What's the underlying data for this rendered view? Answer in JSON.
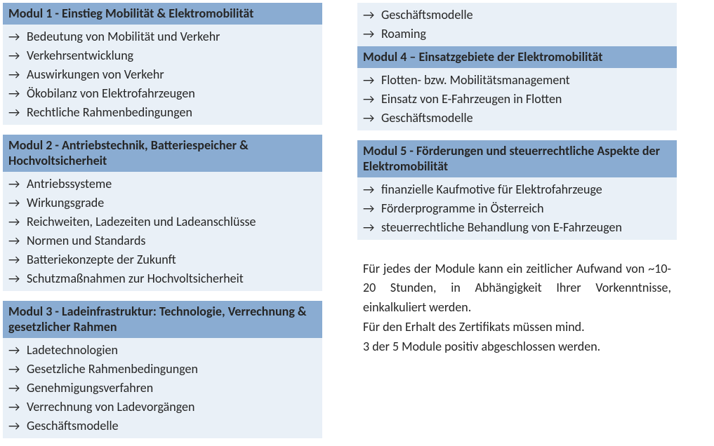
{
  "colors": {
    "header_bg": "#8aacd2",
    "body_bg": "#e9f0f7",
    "text": "#262626",
    "arrow": "#262626",
    "page_bg": "#ffffff"
  },
  "arrow_glyph": "→",
  "modules": {
    "m1": {
      "title": "Modul 1 - Einstieg Mobilität & Elektromobilität",
      "items": [
        "Bedeutung von Mobilität und Verkehr",
        "Verkehrsentwicklung",
        "Auswirkungen von Verkehr",
        "Ökobilanz von Elektrofahrzeugen",
        "Rechtliche Rahmenbedingungen"
      ]
    },
    "m2": {
      "title": "Modul 2 - Antriebstechnik, Batteriespeicher & Hochvoltsicherheit",
      "items": [
        "Antriebssysteme",
        "Wirkungsgrade",
        "Reichweiten, Ladezeiten und Ladeanschlüsse",
        "Normen und Standards",
        "Batteriekonzepte der Zukunft",
        "Schutzmaßnahmen zur Hochvoltsicherheit"
      ]
    },
    "m3": {
      "title": "Modul 3 - Ladeinfrastruktur: Technologie, Verrechnung & gesetzlicher Rahmen",
      "items": [
        "Ladetechnologien",
        "Gesetzliche Rahmenbedingungen",
        "Genehmigungsverfahren",
        "Verrechnung von Ladevorgängen",
        "Geschäftsmodelle"
      ]
    },
    "m3cont": {
      "items": [
        "Geschäftsmodelle",
        "Roaming"
      ]
    },
    "m4": {
      "title": "Modul 4 – Einsatzgebiete der Elektromobilität",
      "items": [
        "Flotten- bzw. Mobilitätsmanagement",
        "Einsatz von E-Fahrzeugen in Flotten",
        "Geschäftsmodelle"
      ]
    },
    "m5": {
      "title": "Modul 5 - Förderungen und steuerrechtliche Aspekte der Elektromobilität",
      "items": [
        "finanzielle Kaufmotive für Elektrofahrzeuge",
        "Förderprogramme in Österreich",
        "steuerrechtliche Behandlung von E-Fahrzeugen"
      ]
    }
  },
  "info": {
    "p1": "Für jedes der Module kann ein zeitlicher Aufwand von ~10-20 Stunden, in Abhängigkeit Ihrer Vorkenntnisse, einkalkuliert werden.",
    "p2": "Für den Erhalt des Zertifikats müssen mind.",
    "p3": "3 der 5 Module positiv abgeschlossen werden."
  }
}
